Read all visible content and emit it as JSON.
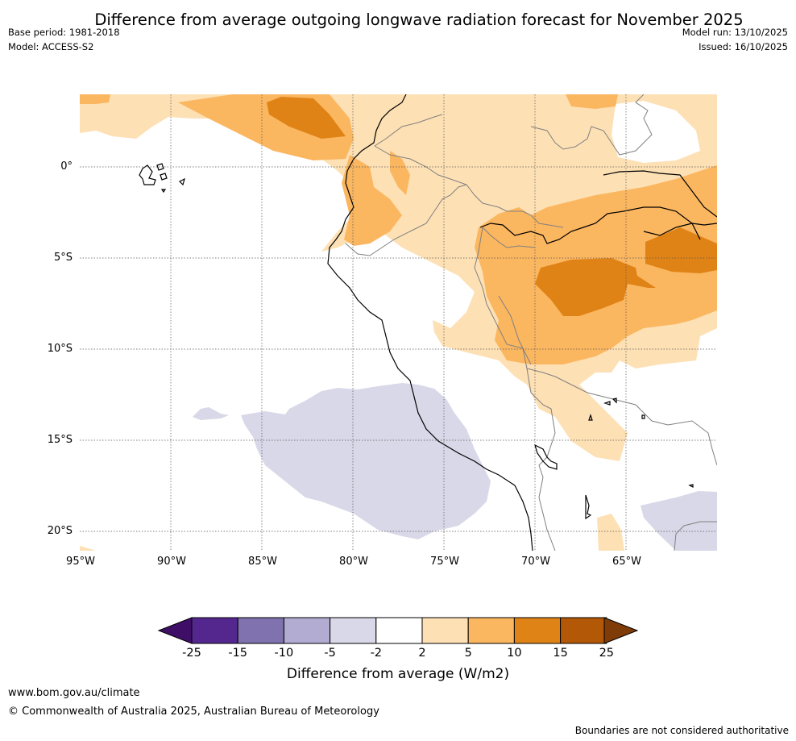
{
  "title": "Difference from average outgoing longwave radiation forecast for November 2025",
  "base_period": "Base period: 1981-2018",
  "model": "Model: ACCESS-S2",
  "model_run": "Model run: 13/10/2025",
  "issued": "Issued: 16/10/2025",
  "map_region": {
    "lon_range": [
      -95,
      -60
    ],
    "lat_range": [
      -21,
      4
    ]
  },
  "latitude_labels": [
    "0°",
    "5°S",
    "10°S",
    "15°S",
    "20°S"
  ],
  "longitude_labels": [
    "95°W",
    "90°W",
    "85°W",
    "80°W",
    "75°W",
    "70°W",
    "65°W"
  ],
  "colorbar": {
    "ticks": [
      "-25",
      "-15",
      "-10",
      "-5",
      "-2",
      "2",
      "5",
      "10",
      "15",
      "25"
    ],
    "colors": [
      "#3f0f68",
      "#54278f",
      "#8072ae",
      "#b2abd2",
      "#d8d8e8",
      "#ffffff",
      "#fde0b4",
      "#fbb660",
      "#e08316",
      "#b35806",
      "#7f3b08"
    ],
    "label": "Difference from average (W/m2)"
  },
  "footer": {
    "url": "www.bom.gov.au/climate",
    "copyright": "© Commonwealth of Australia 2025, Australian Bureau of Meteorology",
    "disclaimer": "Boundaries are not considered authoritative"
  }
}
